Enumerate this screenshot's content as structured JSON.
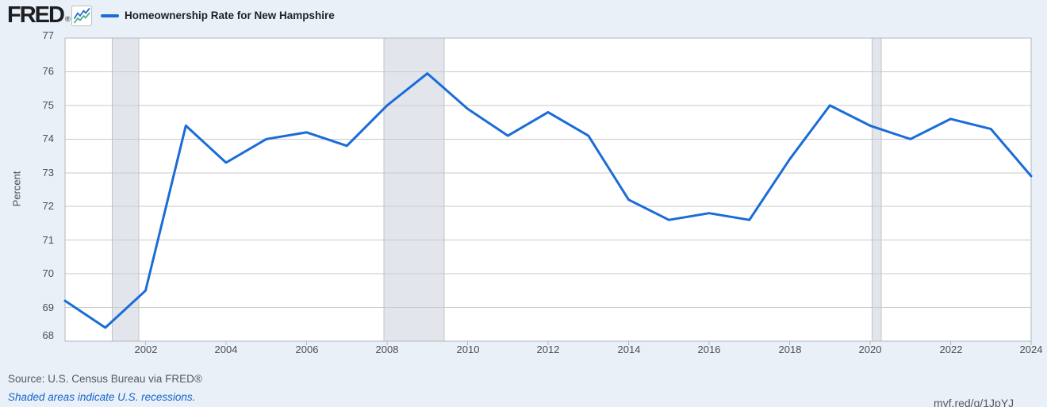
{
  "header": {
    "logo_text": "FRED",
    "registered_mark": "®",
    "series_title": "Homeownership Rate for New Hampshire"
  },
  "chart_data": {
    "type": "line",
    "title": "Homeownership Rate for New Hampshire",
    "xlabel": "",
    "ylabel": "Percent",
    "x": [
      2000,
      2001,
      2002,
      2003,
      2004,
      2005,
      2006,
      2007,
      2008,
      2009,
      2010,
      2011,
      2012,
      2013,
      2014,
      2015,
      2016,
      2017,
      2018,
      2019,
      2020,
      2021,
      2022,
      2023,
      2024
    ],
    "values": [
      69.2,
      68.4,
      69.5,
      74.4,
      73.3,
      74.0,
      74.2,
      73.8,
      75.0,
      75.95,
      74.9,
      74.1,
      74.8,
      74.1,
      72.2,
      71.6,
      71.8,
      71.6,
      73.4,
      75.0,
      74.4,
      74.0,
      74.6,
      74.3,
      72.9
    ],
    "xlim": [
      2000,
      2024
    ],
    "ylim": [
      68,
      77
    ],
    "xticks": [
      2002,
      2004,
      2006,
      2008,
      2010,
      2012,
      2014,
      2016,
      2018,
      2020,
      2022,
      2024
    ],
    "yticks": [
      68,
      69,
      70,
      71,
      72,
      73,
      74,
      75,
      76,
      77
    ],
    "recessions": [
      [
        2001.17,
        2001.83
      ],
      [
        2007.92,
        2009.42
      ],
      [
        2020.05,
        2020.28
      ]
    ],
    "grid": "horizontal",
    "legend_position": "header-top-left"
  },
  "footer": {
    "source_text": "Source: U.S. Census Bureau via FRED®",
    "recession_note": "Shaded areas indicate U.S. recessions.",
    "shortlink": "myf.red/g/1JpYJ"
  },
  "colors": {
    "page_background": "#e9f0f8",
    "plot_background": "#ffffff",
    "series_line": "#1a6cd8",
    "gridline": "#c9c9c9",
    "plot_border": "#b3b7bc",
    "recession_band": "#e2e6ec",
    "recession_band_edge": "#c0c4c9",
    "tick_label": "#4c4f53",
    "title_text": "#1f2124",
    "logo_text": "#1c1e21",
    "source_text": "#565a5e",
    "note_link": "#1666cb",
    "logo_icon_blue": "#2e6fc8",
    "logo_icon_green": "#52ad89"
  }
}
